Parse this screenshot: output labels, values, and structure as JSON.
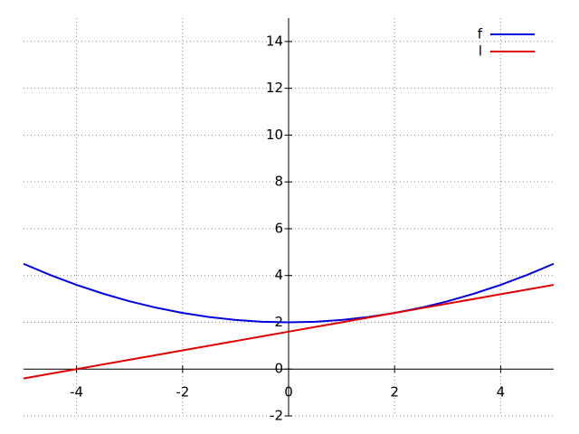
{
  "chart_data": {
    "type": "line",
    "x": [
      -5,
      -4.5,
      -4,
      -3.5,
      -3,
      -2.5,
      -2,
      -1.5,
      -1,
      -0.5,
      0,
      0.5,
      1,
      1.5,
      2,
      2.5,
      3,
      3.5,
      4,
      4.5,
      5
    ],
    "series": [
      {
        "name": "f",
        "color": "#0000e0",
        "values": [
          4.5,
          4.025,
          3.6,
          3.225,
          2.9,
          2.625,
          2.4,
          2.225,
          2.1,
          2.025,
          2,
          2.025,
          2.1,
          2.225,
          2.4,
          2.625,
          2.9,
          3.225,
          3.6,
          4.025,
          4.5
        ]
      },
      {
        "name": "l",
        "color": "#e00000",
        "values": [
          -0.4,
          -0.2,
          0,
          0.2,
          0.4,
          0.6,
          0.8,
          1,
          1.2,
          1.4,
          1.6,
          1.8,
          2,
          2.2,
          2.4,
          2.6,
          2.8,
          3,
          3.2,
          3.4,
          3.6
        ]
      }
    ],
    "xlim": [
      -5,
      5
    ],
    "ylim": [
      -2,
      15
    ],
    "xticks": [
      -4,
      -2,
      0,
      2,
      4
    ],
    "yticks": [
      -2,
      0,
      2,
      4,
      6,
      8,
      10,
      12,
      14
    ],
    "grid": true,
    "legend": "top-right"
  }
}
